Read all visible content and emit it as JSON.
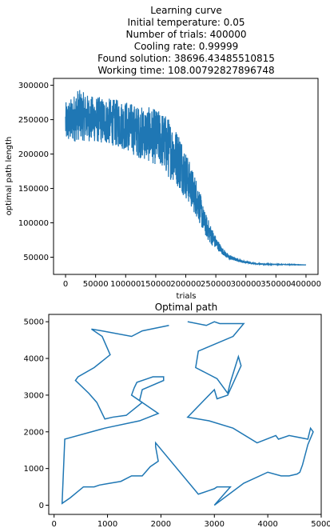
{
  "chart_data": [
    {
      "type": "line",
      "title_lines": [
        "Learning curve",
        "Initial temperature: 0.05",
        "Number of trials: 400000",
        "Cooling rate: 0.99999",
        "Found solution: 38696.43485510815",
        "Working time: 108.00792827896748"
      ],
      "xlabel": "trials",
      "ylabel": "optimal path length",
      "xlim": [
        -20000,
        420000
      ],
      "ylim": [
        25000,
        310000
      ],
      "xticks": [
        0,
        50000,
        100000,
        150000,
        200000,
        250000,
        300000,
        350000,
        400000
      ],
      "yticks": [
        50000,
        100000,
        150000,
        200000,
        250000,
        300000
      ],
      "color": "#1f77b4",
      "series": [
        {
          "envelope_x": [
            0,
            10000,
            20000,
            40000,
            60000,
            80000,
            100000,
            120000,
            140000,
            160000,
            170000,
            180000,
            190000,
            200000,
            210000,
            220000,
            230000,
            240000,
            250000,
            260000,
            270000,
            280000,
            290000,
            300000,
            320000,
            340000,
            360000,
            380000,
            400000
          ],
          "envelope_lo": [
            215000,
            215000,
            220000,
            218000,
            215000,
            212000,
            205000,
            195000,
            188000,
            180000,
            165000,
            160000,
            148000,
            135000,
            120000,
            105000,
            85000,
            70000,
            62000,
            55000,
            47000,
            45000,
            43000,
            41000,
            39500,
            39000,
            39000,
            38800,
            38700
          ],
          "envelope_hi": [
            275000,
            282000,
            295000,
            285000,
            283000,
            280000,
            278000,
            270000,
            268000,
            262000,
            255000,
            240000,
            232000,
            205000,
            180000,
            160000,
            120000,
            100000,
            80000,
            65000,
            55000,
            50000,
            47000,
            44000,
            41000,
            40000,
            40000,
            39500,
            38900
          ]
        }
      ]
    },
    {
      "type": "line",
      "title": "Optimal path",
      "xlim": [
        -100,
        5000
      ],
      "ylim": [
        -250,
        5200
      ],
      "xticks": [
        0,
        1000,
        2000,
        3000,
        4000,
        5000
      ],
      "yticks": [
        0,
        1000,
        2000,
        3000,
        4000,
        5000
      ],
      "color": "#1f77b4",
      "series": [
        {
          "x": [
            2500,
            2850,
            3000,
            3100,
            3550,
            3350,
            2700,
            2650,
            3050,
            3250,
            3300,
            3450,
            3500,
            3250,
            3050,
            3000,
            2500,
            2900,
            3350,
            3800,
            4150,
            4200,
            4400,
            4750,
            4800,
            4850,
            4750,
            4650,
            4600,
            4550,
            4400,
            4250,
            4000,
            3550,
            3000,
            3300,
            3050,
            3000,
            2900,
            2700,
            1900,
            1900,
            1950,
            1800,
            1650,
            1450,
            1250,
            1050,
            850,
            750,
            550,
            300,
            150,
            200,
            950,
            1600,
            1950,
            1600,
            1650,
            2050,
            2050,
            1850,
            1750,
            1550,
            1500,
            1450,
            1650,
            1350,
            1100,
            950,
            950,
            800,
            650,
            400,
            450,
            750,
            1050,
            900,
            700,
            900,
            1450,
            1650,
            2150
          ],
          "y": [
            5000,
            4900,
            5000,
            4950,
            4950,
            4600,
            4200,
            3750,
            3450,
            3050,
            3350,
            4050,
            3800,
            3000,
            2900,
            3150,
            2400,
            2300,
            2100,
            1700,
            1900,
            1800,
            1900,
            1800,
            2100,
            2000,
            1650,
            1100,
            900,
            850,
            800,
            800,
            900,
            600,
            0,
            500,
            500,
            450,
            400,
            300,
            1700,
            1600,
            1200,
            1050,
            800,
            800,
            650,
            600,
            550,
            500,
            500,
            200,
            50,
            1800,
            2100,
            2300,
            2500,
            2850,
            3150,
            3400,
            3500,
            3500,
            3450,
            3350,
            3200,
            3000,
            2800,
            2450,
            2400,
            2350,
            2350,
            2800,
            3050,
            3400,
            3500,
            3750,
            4100,
            4600,
            4800,
            4750,
            4600,
            4750,
            4900
          ]
        }
      ]
    }
  ]
}
